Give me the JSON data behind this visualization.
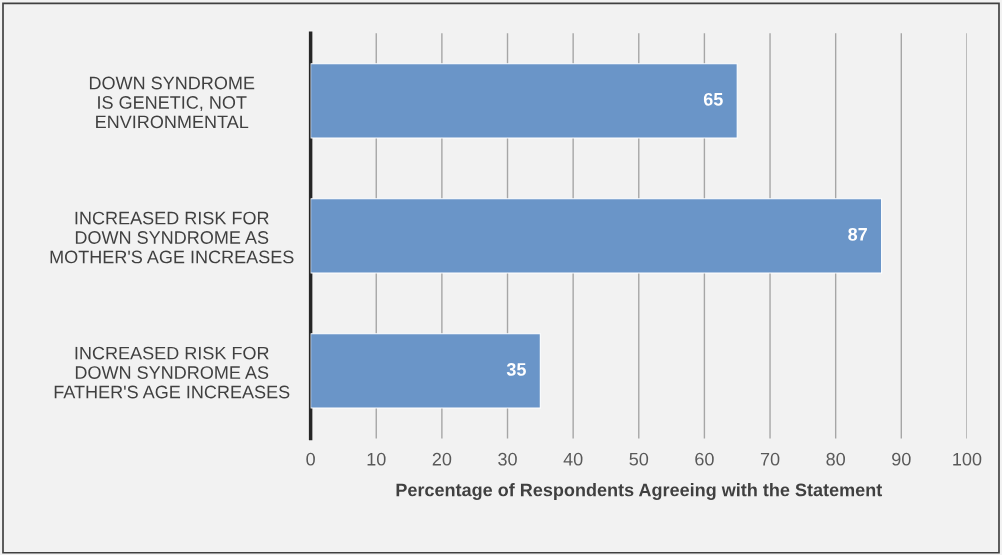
{
  "chart_data": {
    "type": "bar",
    "orientation": "horizontal",
    "xlabel": "Percentage of Respondents Agreeing with the Statement",
    "categories": [
      "DOWN SYNDROME\nIS GENETIC, NOT\nENVIRONMENTAL",
      "INCREASED RISK FOR\nDOWN SYNDROME AS\nMOTHER'S AGE INCREASES",
      "INCREASED RISK FOR\nDOWN SYNDROME AS\nFATHER'S AGE INCREASES"
    ],
    "values": [
      65,
      87,
      35
    ],
    "color": "#6a95c8",
    "xlim": [
      0,
      100
    ],
    "xticks": [
      0,
      10,
      20,
      30,
      40,
      50,
      60,
      70,
      80,
      90,
      100
    ],
    "grid": "x",
    "data_labels": true
  }
}
